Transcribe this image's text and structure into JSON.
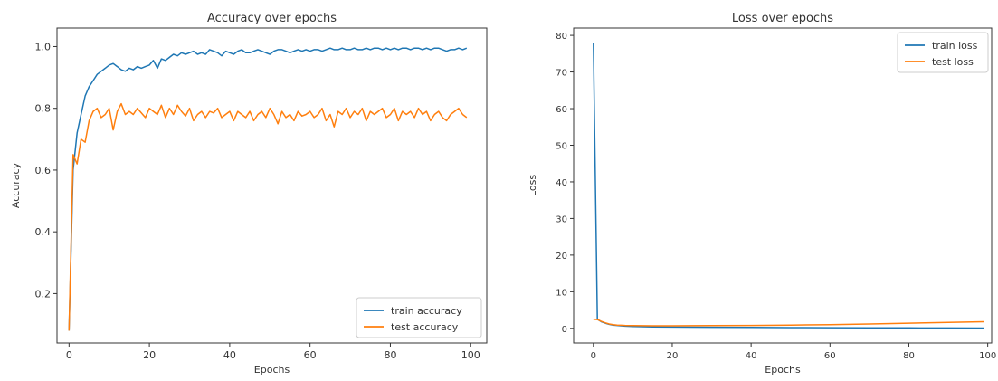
{
  "chart_data": [
    {
      "type": "line",
      "title": "Accuracy over epochs",
      "xlabel": "Epochs",
      "ylabel": "Accuracy",
      "xlim": [
        -3,
        104
      ],
      "ylim": [
        0.04,
        1.06
      ],
      "xticks": [
        0,
        20,
        40,
        60,
        80,
        100
      ],
      "yticks": [
        0.2,
        0.4,
        0.6,
        0.8,
        1.0
      ],
      "ytick_labels": [
        "0.2",
        "0.4",
        "0.6",
        "0.8",
        "1.0"
      ],
      "grid": false,
      "legend_position": "bottom-right",
      "series": [
        {
          "name": "train accuracy",
          "color": "#1f77b4",
          "x": [
            0,
            1,
            2,
            3,
            4,
            5,
            6,
            7,
            8,
            9,
            10,
            11,
            12,
            13,
            14,
            15,
            16,
            17,
            18,
            19,
            20,
            21,
            22,
            23,
            24,
            25,
            26,
            27,
            28,
            29,
            30,
            31,
            32,
            33,
            34,
            35,
            36,
            37,
            38,
            39,
            40,
            41,
            42,
            43,
            44,
            45,
            46,
            47,
            48,
            49,
            50,
            51,
            52,
            53,
            54,
            55,
            56,
            57,
            58,
            59,
            60,
            61,
            62,
            63,
            64,
            65,
            66,
            67,
            68,
            69,
            70,
            71,
            72,
            73,
            74,
            75,
            76,
            77,
            78,
            79,
            80,
            81,
            82,
            83,
            84,
            85,
            86,
            87,
            88,
            89,
            90,
            91,
            92,
            93,
            94,
            95,
            96,
            97,
            98,
            99
          ],
          "y": [
            0.08,
            0.6,
            0.72,
            0.78,
            0.84,
            0.87,
            0.89,
            0.91,
            0.92,
            0.93,
            0.94,
            0.945,
            0.935,
            0.925,
            0.92,
            0.93,
            0.925,
            0.935,
            0.93,
            0.935,
            0.94,
            0.955,
            0.93,
            0.96,
            0.955,
            0.965,
            0.975,
            0.97,
            0.98,
            0.975,
            0.98,
            0.985,
            0.975,
            0.98,
            0.975,
            0.99,
            0.985,
            0.98,
            0.97,
            0.985,
            0.98,
            0.975,
            0.985,
            0.99,
            0.98,
            0.98,
            0.985,
            0.99,
            0.985,
            0.98,
            0.975,
            0.985,
            0.99,
            0.99,
            0.985,
            0.98,
            0.985,
            0.99,
            0.985,
            0.99,
            0.985,
            0.99,
            0.99,
            0.985,
            0.99,
            0.995,
            0.99,
            0.99,
            0.995,
            0.99,
            0.99,
            0.995,
            0.99,
            0.99,
            0.995,
            0.99,
            0.995,
            0.995,
            0.99,
            0.995,
            0.99,
            0.995,
            0.99,
            0.995,
            0.995,
            0.99,
            0.995,
            0.995,
            0.99,
            0.995,
            0.99,
            0.995,
            0.995,
            0.99,
            0.985,
            0.99,
            0.99,
            0.995,
            0.99,
            0.995
          ]
        },
        {
          "name": "test accuracy",
          "color": "#ff7f0e",
          "x": [
            0,
            1,
            2,
            3,
            4,
            5,
            6,
            7,
            8,
            9,
            10,
            11,
            12,
            13,
            14,
            15,
            16,
            17,
            18,
            19,
            20,
            21,
            22,
            23,
            24,
            25,
            26,
            27,
            28,
            29,
            30,
            31,
            32,
            33,
            34,
            35,
            36,
            37,
            38,
            39,
            40,
            41,
            42,
            43,
            44,
            45,
            46,
            47,
            48,
            49,
            50,
            51,
            52,
            53,
            54,
            55,
            56,
            57,
            58,
            59,
            60,
            61,
            62,
            63,
            64,
            65,
            66,
            67,
            68,
            69,
            70,
            71,
            72,
            73,
            74,
            75,
            76,
            77,
            78,
            79,
            80,
            81,
            82,
            83,
            84,
            85,
            86,
            87,
            88,
            89,
            90,
            91,
            92,
            93,
            94,
            95,
            96,
            97,
            98,
            99
          ],
          "y": [
            0.08,
            0.65,
            0.62,
            0.7,
            0.69,
            0.76,
            0.79,
            0.8,
            0.77,
            0.78,
            0.8,
            0.73,
            0.79,
            0.815,
            0.78,
            0.79,
            0.78,
            0.8,
            0.785,
            0.77,
            0.8,
            0.79,
            0.78,
            0.81,
            0.77,
            0.8,
            0.78,
            0.81,
            0.79,
            0.775,
            0.8,
            0.76,
            0.78,
            0.79,
            0.77,
            0.79,
            0.785,
            0.8,
            0.77,
            0.78,
            0.79,
            0.76,
            0.79,
            0.78,
            0.77,
            0.79,
            0.76,
            0.78,
            0.79,
            0.77,
            0.8,
            0.78,
            0.75,
            0.79,
            0.77,
            0.78,
            0.76,
            0.79,
            0.775,
            0.78,
            0.79,
            0.77,
            0.78,
            0.8,
            0.76,
            0.78,
            0.74,
            0.79,
            0.78,
            0.8,
            0.77,
            0.79,
            0.78,
            0.8,
            0.76,
            0.79,
            0.78,
            0.79,
            0.8,
            0.77,
            0.78,
            0.8,
            0.76,
            0.79,
            0.78,
            0.79,
            0.77,
            0.8,
            0.78,
            0.79,
            0.76,
            0.78,
            0.79,
            0.77,
            0.76,
            0.78,
            0.79,
            0.8,
            0.78,
            0.77
          ]
        }
      ]
    },
    {
      "type": "line",
      "title": "Loss over epochs",
      "xlabel": "Epochs",
      "ylabel": "Loss",
      "xlim": [
        -5,
        101
      ],
      "ylim": [
        -4,
        82
      ],
      "xticks": [
        0,
        20,
        40,
        60,
        80,
        100
      ],
      "yticks": [
        0,
        10,
        20,
        30,
        40,
        50,
        60,
        70,
        80
      ],
      "grid": false,
      "legend_position": "top-right",
      "series": [
        {
          "name": "train loss",
          "color": "#1f77b4",
          "x": [
            0,
            1,
            2,
            3,
            4,
            5,
            6,
            7,
            8,
            10,
            15,
            20,
            30,
            40,
            50,
            60,
            70,
            80,
            90,
            99
          ],
          "y": [
            78,
            2.5,
            1.8,
            1.4,
            1.1,
            0.9,
            0.8,
            0.7,
            0.6,
            0.5,
            0.4,
            0.35,
            0.3,
            0.25,
            0.2,
            0.18,
            0.15,
            0.12,
            0.1,
            0.08
          ]
        },
        {
          "name": "test loss",
          "color": "#ff7f0e",
          "x": [
            0,
            1,
            2,
            3,
            4,
            5,
            6,
            7,
            8,
            10,
            15,
            20,
            30,
            40,
            50,
            60,
            70,
            80,
            90,
            99
          ],
          "y": [
            2.5,
            2.4,
            1.9,
            1.5,
            1.2,
            1.0,
            0.9,
            0.85,
            0.8,
            0.75,
            0.7,
            0.7,
            0.75,
            0.8,
            0.9,
            1.0,
            1.2,
            1.4,
            1.6,
            1.8
          ]
        }
      ]
    }
  ]
}
